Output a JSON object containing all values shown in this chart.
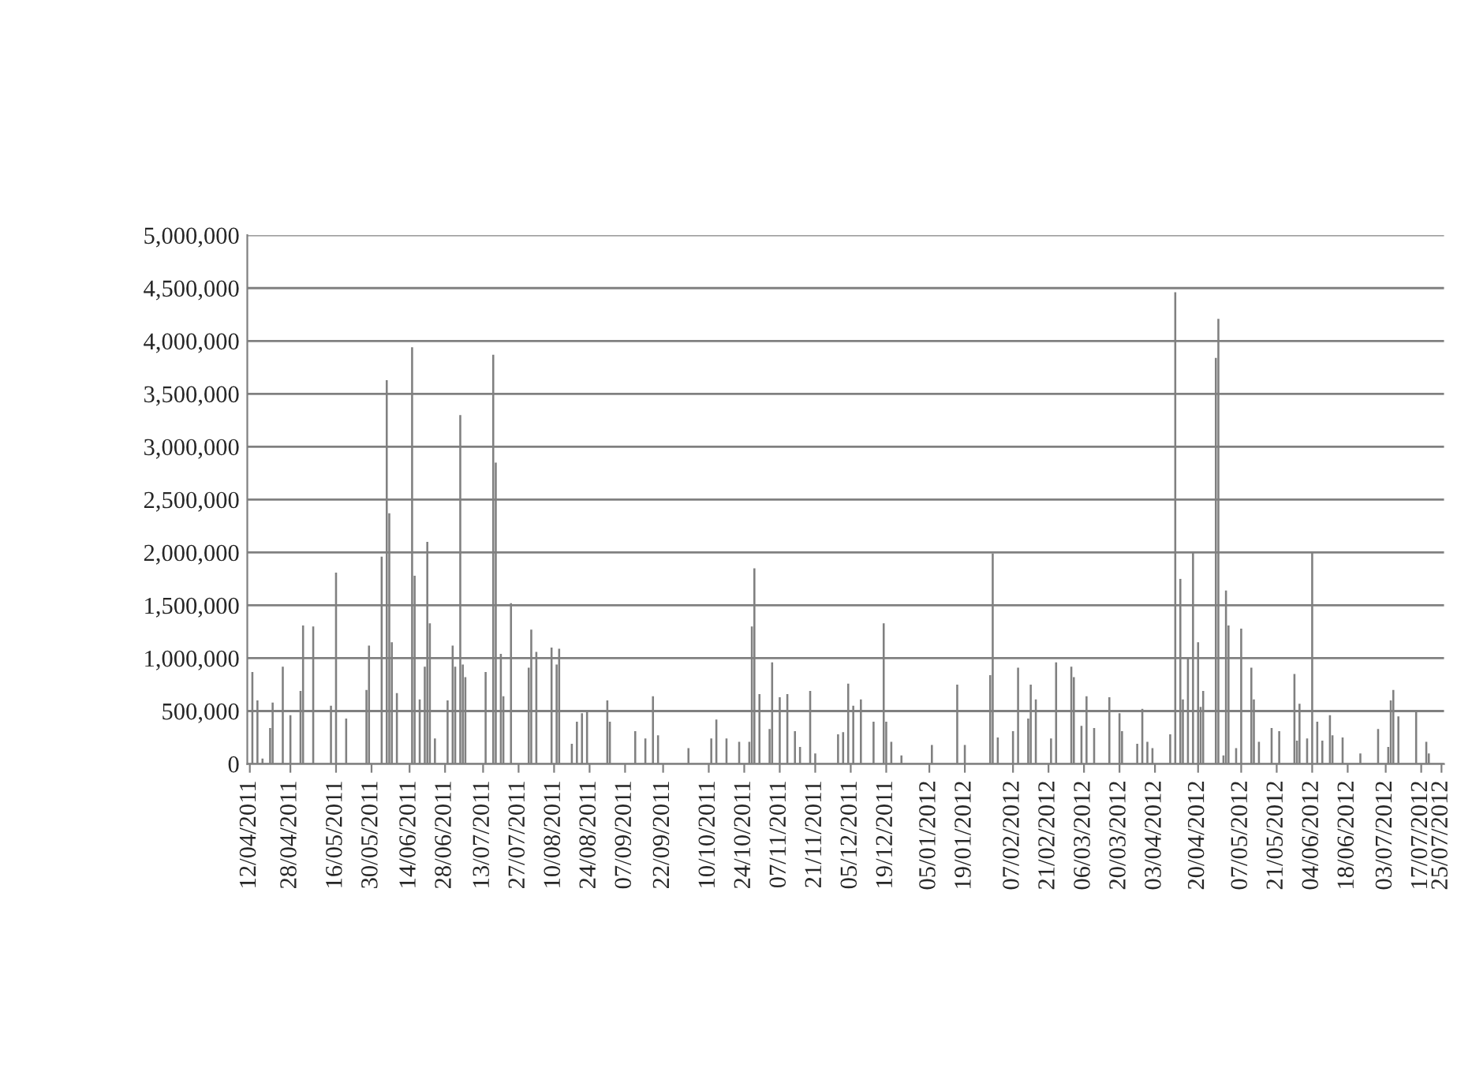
{
  "chart_data": {
    "type": "bar",
    "color": "#808080",
    "grid": "y",
    "x": [
      "2011-04-13",
      "2011-04-15",
      "2011-04-17",
      "2011-04-20",
      "2011-04-21",
      "2011-04-25",
      "2011-04-28",
      "2011-05-02",
      "2011-05-03",
      "2011-05-07",
      "2011-05-14",
      "2011-05-16",
      "2011-05-20",
      "2011-05-28",
      "2011-05-29",
      "2011-06-03",
      "2011-06-05",
      "2011-06-06",
      "2011-06-07",
      "2011-06-09",
      "2011-06-15",
      "2011-06-16",
      "2011-06-18",
      "2011-06-20",
      "2011-06-21",
      "2011-06-22",
      "2011-06-24",
      "2011-06-29",
      "2011-07-01",
      "2011-07-02",
      "2011-07-04",
      "2011-07-05",
      "2011-07-06",
      "2011-07-14",
      "2011-07-17",
      "2011-07-18",
      "2011-07-20",
      "2011-07-21",
      "2011-07-24",
      "2011-07-31",
      "2011-08-01",
      "2011-08-03",
      "2011-08-09",
      "2011-08-11",
      "2011-08-12",
      "2011-08-17",
      "2011-08-19",
      "2011-08-21",
      "2011-08-23",
      "2011-08-31",
      "2011-09-01",
      "2011-09-11",
      "2011-09-15",
      "2011-09-18",
      "2011-09-20",
      "2011-10-02",
      "2011-10-11",
      "2011-10-13",
      "2011-10-17",
      "2011-10-22",
      "2011-10-26",
      "2011-10-27",
      "2011-10-28",
      "2011-10-30",
      "2011-11-03",
      "2011-11-04",
      "2011-11-07",
      "2011-11-10",
      "2011-11-13",
      "2011-11-15",
      "2011-11-19",
      "2011-11-21",
      "2011-11-30",
      "2011-12-02",
      "2011-12-04",
      "2011-12-06",
      "2011-12-09",
      "2011-12-14",
      "2011-12-18",
      "2011-12-19",
      "2011-12-21",
      "2011-12-25",
      "2012-01-06",
      "2012-01-16",
      "2012-01-19",
      "2012-01-29",
      "2012-01-30",
      "2012-02-01",
      "2012-02-07",
      "2012-02-09",
      "2012-02-13",
      "2012-02-14",
      "2012-02-16",
      "2012-02-22",
      "2012-02-24",
      "2012-03-01",
      "2012-03-02",
      "2012-03-05",
      "2012-03-07",
      "2012-03-10",
      "2012-03-16",
      "2012-03-20",
      "2012-03-21",
      "2012-03-27",
      "2012-03-29",
      "2012-03-31",
      "2012-04-02",
      "2012-04-09",
      "2012-04-11",
      "2012-04-13",
      "2012-04-14",
      "2012-04-16",
      "2012-04-18",
      "2012-04-20",
      "2012-04-21",
      "2012-04-22",
      "2012-04-27",
      "2012-04-28",
      "2012-04-30",
      "2012-05-01",
      "2012-05-02",
      "2012-05-05",
      "2012-05-07",
      "2012-05-11",
      "2012-05-12",
      "2012-05-14",
      "2012-05-19",
      "2012-05-22",
      "2012-05-28",
      "2012-05-29",
      "2012-05-30",
      "2012-06-02",
      "2012-06-04",
      "2012-06-06",
      "2012-06-08",
      "2012-06-11",
      "2012-06-12",
      "2012-06-16",
      "2012-06-23",
      "2012-06-30",
      "2012-07-04",
      "2012-07-05",
      "2012-07-06",
      "2012-07-08",
      "2012-07-15",
      "2012-07-19",
      "2012-07-20"
    ],
    "values": [
      870000,
      600000,
      50000,
      340000,
      580000,
      920000,
      460000,
      690000,
      1310000,
      1300000,
      550000,
      1810000,
      430000,
      700000,
      1120000,
      1960000,
      3630000,
      2370000,
      1150000,
      670000,
      3940000,
      1780000,
      610000,
      920000,
      2100000,
      1330000,
      240000,
      600000,
      1120000,
      920000,
      3300000,
      940000,
      820000,
      870000,
      3870000,
      2850000,
      1040000,
      640000,
      1520000,
      910000,
      1270000,
      1060000,
      1100000,
      940000,
      1090000,
      190000,
      400000,
      480000,
      490000,
      600000,
      400000,
      310000,
      240000,
      640000,
      270000,
      150000,
      240000,
      420000,
      240000,
      210000,
      210000,
      1300000,
      1850000,
      660000,
      330000,
      960000,
      630000,
      660000,
      310000,
      160000,
      690000,
      100000,
      280000,
      300000,
      760000,
      550000,
      610000,
      400000,
      1330000,
      400000,
      210000,
      80000,
      180000,
      750000,
      180000,
      840000,
      1990000,
      250000,
      310000,
      910000,
      430000,
      750000,
      610000,
      240000,
      960000,
      920000,
      820000,
      360000,
      640000,
      340000,
      630000,
      480000,
      310000,
      190000,
      520000,
      210000,
      150000,
      280000,
      4460000,
      1750000,
      610000,
      1000000,
      2010000,
      1150000,
      540000,
      690000,
      3840000,
      4210000,
      80000,
      1640000,
      1310000,
      150000,
      1280000,
      910000,
      610000,
      210000,
      340000,
      310000,
      850000,
      220000,
      570000,
      240000,
      2000000,
      400000,
      220000,
      460000,
      270000,
      250000,
      100000,
      330000,
      160000,
      600000,
      700000,
      450000,
      490000,
      210000,
      100000
    ],
    "xlim": [
      "2011-04-11",
      "2012-07-26"
    ],
    "xticks": [
      {
        "value": "2011-04-12",
        "label": "12/04/2011"
      },
      {
        "value": "2011-04-28",
        "label": "28/04/2011"
      },
      {
        "value": "2011-05-16",
        "label": "16/05/2011"
      },
      {
        "value": "2011-05-30",
        "label": "30/05/2011"
      },
      {
        "value": "2011-06-14",
        "label": "14/06/2011"
      },
      {
        "value": "2011-06-28",
        "label": "28/06/2011"
      },
      {
        "value": "2011-07-13",
        "label": "13/07/2011"
      },
      {
        "value": "2011-07-27",
        "label": "27/07/2011"
      },
      {
        "value": "2011-08-10",
        "label": "10/08/2011"
      },
      {
        "value": "2011-08-24",
        "label": "24/08/2011"
      },
      {
        "value": "2011-09-07",
        "label": "07/09/2011"
      },
      {
        "value": "2011-09-22",
        "label": "22/09/2011"
      },
      {
        "value": "2011-10-10",
        "label": "10/10/2011"
      },
      {
        "value": "2011-10-24",
        "label": "24/10/2011"
      },
      {
        "value": "2011-11-07",
        "label": "07/11/2011"
      },
      {
        "value": "2011-11-21",
        "label": "21/11/2011"
      },
      {
        "value": "2011-12-05",
        "label": "05/12/2011"
      },
      {
        "value": "2011-12-19",
        "label": "19/12/2011"
      },
      {
        "value": "2012-01-05",
        "label": "05/01/2012"
      },
      {
        "value": "2012-01-19",
        "label": "19/01/2012"
      },
      {
        "value": "2012-02-07",
        "label": "07/02/2012"
      },
      {
        "value": "2012-02-21",
        "label": "21/02/2012"
      },
      {
        "value": "2012-03-06",
        "label": "06/03/2012"
      },
      {
        "value": "2012-03-20",
        "label": "20/03/2012"
      },
      {
        "value": "2012-04-03",
        "label": "03/04/2012"
      },
      {
        "value": "2012-04-20",
        "label": "20/04/2012"
      },
      {
        "value": "2012-05-07",
        "label": "07/05/2012"
      },
      {
        "value": "2012-05-21",
        "label": "21/05/2012"
      },
      {
        "value": "2012-06-04",
        "label": "04/06/2012"
      },
      {
        "value": "2012-06-18",
        "label": "18/06/2012"
      },
      {
        "value": "2012-07-03",
        "label": "03/07/2012"
      },
      {
        "value": "2012-07-17",
        "label": "17/07/2012"
      },
      {
        "value": "2012-07-25",
        "label": "25/07/2012"
      }
    ],
    "ylim": [
      0,
      5000000
    ],
    "yticks": [
      {
        "value": 0,
        "label": "0"
      },
      {
        "value": 500000,
        "label": "500,000"
      },
      {
        "value": 1000000,
        "label": "1,000,000"
      },
      {
        "value": 1500000,
        "label": "1,500,000"
      },
      {
        "value": 2000000,
        "label": "2,000,000"
      },
      {
        "value": 2500000,
        "label": "2,500,000"
      },
      {
        "value": 3000000,
        "label": "3,000,000"
      },
      {
        "value": 3500000,
        "label": "3,500,000"
      },
      {
        "value": 4000000,
        "label": "4,000,000"
      },
      {
        "value": 4500000,
        "label": "4,500,000"
      },
      {
        "value": 5000000,
        "label": "5,000,000"
      }
    ]
  }
}
